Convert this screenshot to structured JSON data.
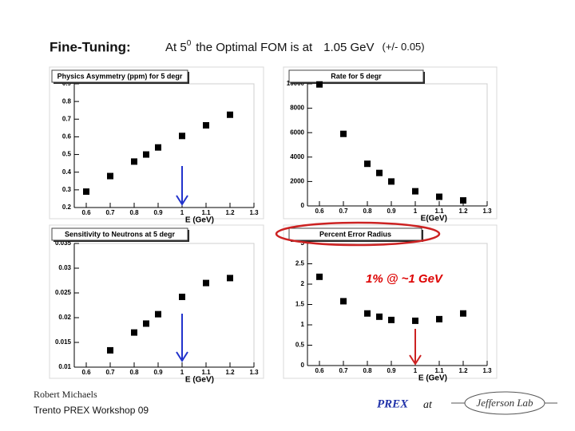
{
  "header": {
    "label": "Fine-Tuning:",
    "statement": [
      "At 5",
      "0",
      "the Optimal FOM is at",
      "1.05 GeV",
      "(+/- 0.05)"
    ]
  },
  "chart_data": [
    {
      "type": "scatter",
      "title": "Physics Asymmetry (ppm) for 5 degr",
      "x_label": "E (GeV)",
      "color": "#000000",
      "x": [
        0.6,
        0.7,
        0.8,
        0.85,
        0.9,
        1.0,
        1.1,
        1.2
      ],
      "values": [
        0.29,
        0.378,
        0.46,
        0.5,
        0.54,
        0.605,
        0.665,
        0.725
      ],
      "xlim": [
        0.55,
        1.3
      ],
      "ylim": [
        0.2,
        0.9
      ],
      "xticks": [
        0.6,
        0.7,
        0.8,
        0.9,
        1,
        1.1,
        1.2,
        1.3
      ],
      "yticks": [
        0.2,
        0.3,
        0.4,
        0.5,
        0.6,
        0.7,
        0.8,
        0.9
      ]
    },
    {
      "type": "scatter",
      "title": "Rate for 5 degr",
      "x_label": "E(GeV)",
      "color": "#000000",
      "x": [
        0.6,
        0.7,
        0.8,
        0.85,
        0.9,
        1.0,
        1.1,
        1.2
      ],
      "values": [
        9950,
        5900,
        3450,
        2700,
        2000,
        1200,
        750,
        450
      ],
      "xlim": [
        0.55,
        1.3
      ],
      "ylim": [
        0,
        10000
      ],
      "xticks": [
        0.6,
        0.7,
        0.8,
        0.9,
        1,
        1.1,
        1.2,
        1.3
      ],
      "yticks": [
        0,
        2000,
        4000,
        6000,
        8000,
        10000
      ]
    },
    {
      "type": "scatter",
      "title": "Sensitivity to Neutrons at 5 degr",
      "x_label": "E (GeV)",
      "color": "#000000",
      "x": [
        0.7,
        0.8,
        0.85,
        0.9,
        1.0,
        1.1,
        1.2
      ],
      "values": [
        0.0134,
        0.017,
        0.0188,
        0.0207,
        0.0242,
        0.027,
        0.028
      ],
      "xlim": [
        0.55,
        1.3
      ],
      "ylim": [
        0.01,
        0.035
      ],
      "xticks": [
        0.6,
        0.7,
        0.8,
        0.9,
        1,
        1.1,
        1.2,
        1.3
      ],
      "yticks": [
        0.01,
        0.015,
        0.02,
        0.025,
        0.03,
        0.035
      ]
    },
    {
      "type": "scatter",
      "title": "Percent Error Radius",
      "x_label": "E (GeV)",
      "color": "#000000",
      "x": [
        0.6,
        0.7,
        0.8,
        0.85,
        0.9,
        1.0,
        1.1,
        1.2
      ],
      "values": [
        2.18,
        1.58,
        1.28,
        1.2,
        1.12,
        1.1,
        1.14,
        1.28
      ],
      "xlim": [
        0.55,
        1.3
      ],
      "ylim": [
        0,
        3
      ],
      "xticks": [
        0.6,
        0.7,
        0.8,
        0.9,
        1,
        1.1,
        1.2,
        1.3
      ],
      "yticks": [
        0,
        0.5,
        1,
        1.5,
        2,
        2.5,
        3
      ]
    }
  ],
  "annotation": "1% @ ~1 GeV",
  "footer": {
    "author": "Robert Michaels",
    "event": "Trento PREX Workshop 09",
    "project": "PREX",
    "at": "at",
    "logo": "Jefferson Lab"
  }
}
